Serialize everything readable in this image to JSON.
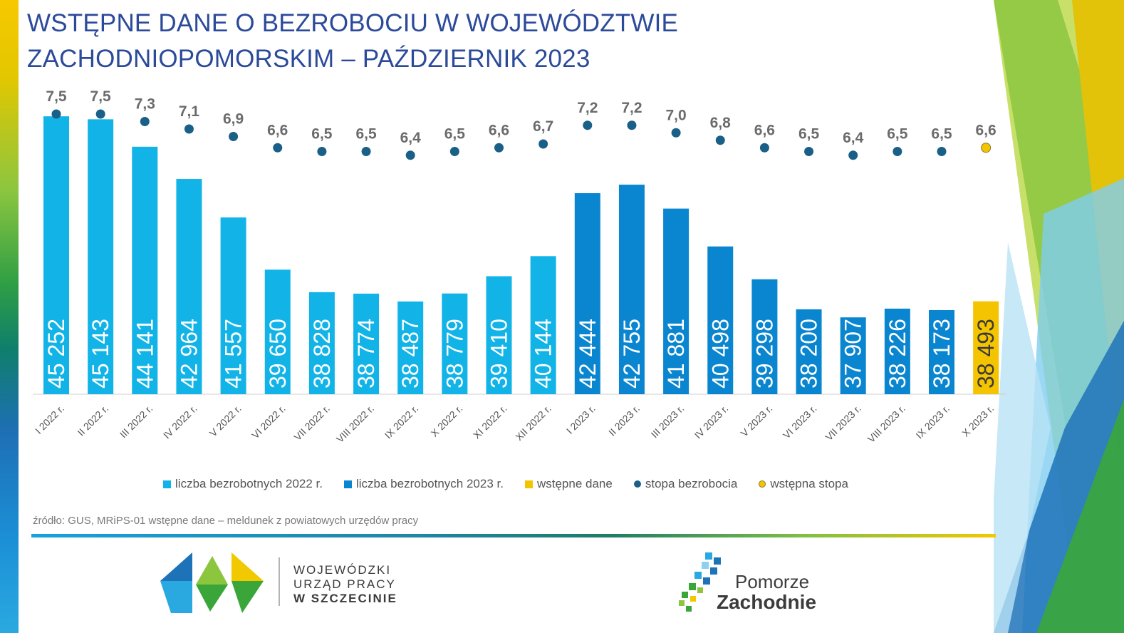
{
  "title": "WSTĘPNE DANE O BEZROBOCIU W WOJEWÓDZTWIE ZACHODNIOPOMORSKIM – PAŹDZIERNIK 2023",
  "source": "źródło: GUS, MRiPS-01 wstępne dane – meldunek z powiatowych urzędów pracy",
  "colors": {
    "series_2022": "#12b4e8",
    "series_2023": "#0a86d0",
    "preliminary": "#f5c400",
    "rate": "#1a5f87",
    "preliminary_rate": "#f5c400"
  },
  "chart_data": {
    "type": "bar",
    "categories": [
      "I 2022 r.",
      "II 2022 r.",
      "III 2022 r.",
      "IV 2022 r.",
      "V 2022 r.",
      "VI 2022 r.",
      "VII 2022 r.",
      "VIII 2022 r.",
      "IX 2022 r.",
      "X 2022 r.",
      "XI 2022 r.",
      "XII 2022 r.",
      "I 2023 r.",
      "II 2023 r.",
      "III 2023 r.",
      "IV 2023 r.",
      "V 2023 r.",
      "VI 2023 r.",
      "VII 2023 r.",
      "VIII 2023 r.",
      "IX 2023 r.",
      "X 2023 r."
    ],
    "series": [
      {
        "name": "liczba bezrobotnych 2022 r.",
        "values": [
          45252,
          45143,
          44141,
          42964,
          41557,
          39650,
          38828,
          38774,
          38487,
          38779,
          39410,
          40144,
          null,
          null,
          null,
          null,
          null,
          null,
          null,
          null,
          null,
          null
        ]
      },
      {
        "name": "liczba bezrobotnych 2023 r.",
        "values": [
          null,
          null,
          null,
          null,
          null,
          null,
          null,
          null,
          null,
          null,
          null,
          null,
          42444,
          42755,
          41881,
          40498,
          39298,
          38200,
          37907,
          38226,
          38173,
          null
        ]
      },
      {
        "name": "wstępne dane",
        "values": [
          null,
          null,
          null,
          null,
          null,
          null,
          null,
          null,
          null,
          null,
          null,
          null,
          null,
          null,
          null,
          null,
          null,
          null,
          null,
          null,
          null,
          38493
        ]
      },
      {
        "name": "stopa bezrobocia",
        "type": "scatter",
        "values": [
          7.5,
          7.5,
          7.3,
          7.1,
          6.9,
          6.6,
          6.5,
          6.5,
          6.4,
          6.5,
          6.6,
          6.7,
          7.2,
          7.2,
          7.0,
          6.8,
          6.6,
          6.5,
          6.4,
          6.5,
          6.5,
          null
        ]
      },
      {
        "name": "wstępna stopa",
        "type": "scatter",
        "values": [
          null,
          null,
          null,
          null,
          null,
          null,
          null,
          null,
          null,
          null,
          null,
          null,
          null,
          null,
          null,
          null,
          null,
          null,
          null,
          null,
          null,
          6.6
        ]
      }
    ],
    "bar_labels": [
      "45 252",
      "45 143",
      "44 141",
      "42 964",
      "41 557",
      "39 650",
      "38 828",
      "38 774",
      "38 487",
      "38 779",
      "39 410",
      "40 144",
      "42 444",
      "42 755",
      "41 881",
      "40 498",
      "39 298",
      "38 200",
      "37 907",
      "38 226",
      "38 173",
      "38 493"
    ],
    "rate_labels": [
      "7,5",
      "7,5",
      "7,3",
      "7,1",
      "6,9",
      "6,6",
      "6,5",
      "6,5",
      "6,4",
      "6,5",
      "6,6",
      "6,7",
      "7,2",
      "7,2",
      "7,0",
      "6,8",
      "6,6",
      "6,5",
      "6,4",
      "6,5",
      "6,5",
      "6,6"
    ],
    "legend": [
      "liczba bezrobotnych 2022 r.",
      "liczba bezrobotnych 2023 r.",
      "wstępne dane",
      "stopa bezrobocia",
      "wstępna stopa"
    ],
    "legend_position": "bottom",
    "grid": false
  },
  "logo_wup": {
    "line1": "WOJEWÓDZKI",
    "line2": "URZĄD PRACY",
    "line3": "W SZCZECINIE"
  },
  "logo_pz": {
    "line1": "Pomorze",
    "line2": "Zachodnie"
  }
}
